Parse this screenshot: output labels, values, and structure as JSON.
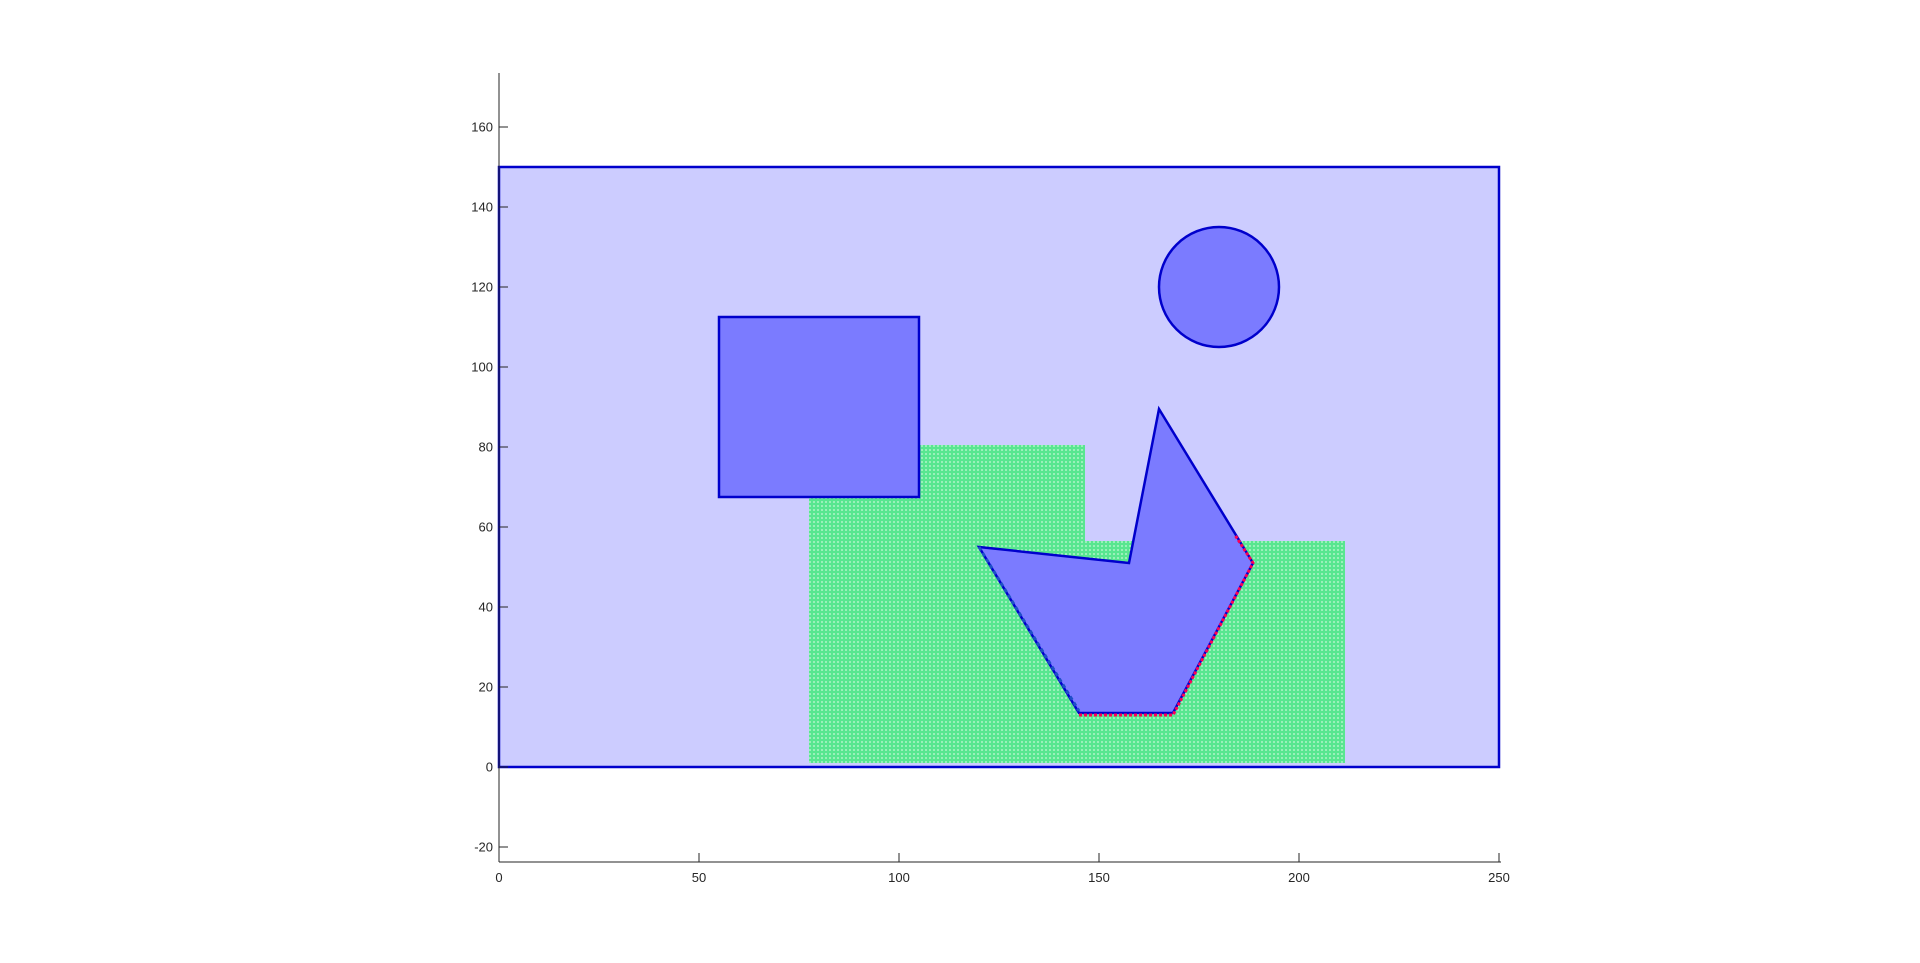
{
  "chart_data": {
    "type": "scatter",
    "title": "",
    "xlabel": "",
    "ylabel": "",
    "xlim": [
      0,
      250
    ],
    "ylim": [
      -23,
      174
    ],
    "xticks": [
      0,
      50,
      100,
      150,
      200,
      250
    ],
    "yticks": [
      -20,
      0,
      20,
      40,
      60,
      80,
      100,
      120,
      140,
      160
    ],
    "grid": false,
    "legend": "none",
    "colors": {
      "workspace_fill": "#ccccff",
      "obstacle_fill": "#7b7bff",
      "edge": "#0000cc",
      "region_green": "#33dd77",
      "boundary_red": "#ff0055",
      "axis": "#262626"
    },
    "workspace": {
      "x": [
        0,
        250,
        250,
        0
      ],
      "y": [
        0,
        0,
        150,
        150
      ]
    },
    "green_regions": [
      {
        "x": [
          77.5,
          146.5,
          146.5,
          77.5
        ],
        "y": [
          1,
          1,
          80.5,
          80.5
        ]
      },
      {
        "x": [
          146.5,
          211.5,
          211.5,
          146.5
        ],
        "y": [
          1,
          1,
          56.5,
          56.5
        ]
      }
    ],
    "obstacles": [
      {
        "shape": "rectangle",
        "x": [
          55,
          105,
          105,
          55
        ],
        "y": [
          67.5,
          67.5,
          112.5,
          112.5
        ]
      },
      {
        "shape": "circle",
        "center": [
          180,
          120
        ],
        "radius": 15
      },
      {
        "shape": "polygon",
        "x": [
          120,
          157.5,
          165,
          188.5,
          168.5,
          145
        ],
        "y": [
          55,
          51,
          89.5,
          51,
          13.5,
          13.5
        ]
      }
    ],
    "red_boundary": {
      "x": [
        145,
        168.5,
        188.5,
        184
      ],
      "y": [
        13,
        13,
        51,
        58
      ]
    },
    "dashed_boundary": {
      "x": [
        120,
        145
      ],
      "y": [
        55,
        14
      ]
    }
  }
}
